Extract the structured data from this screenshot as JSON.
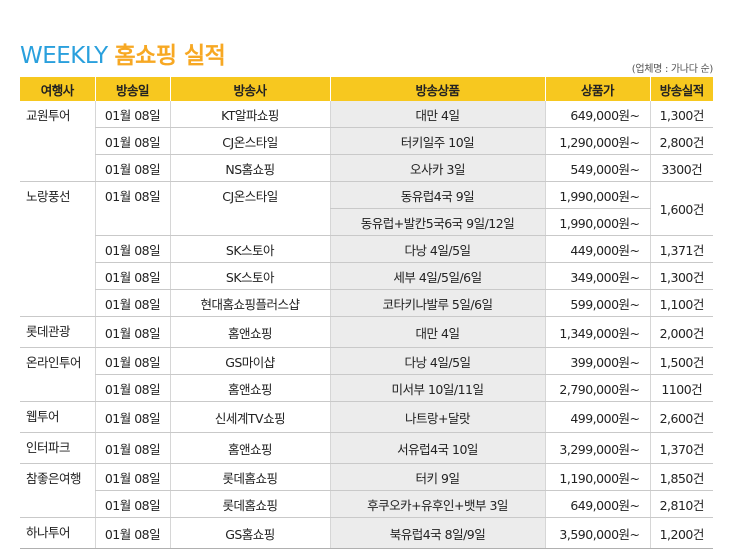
{
  "title": {
    "en": "WEEKLY ",
    "ko": "홈쇼핑 실적"
  },
  "note": "(업체명 : 가나다 순)",
  "headers": {
    "agency": "여행사",
    "date": "방송일",
    "channel": "방송사",
    "product": "방송상품",
    "price": "상품가",
    "sales": "방송실적"
  },
  "rows": [
    {
      "agency": "교원투어",
      "date": "01월 08일",
      "channel": "KT알파쇼핑",
      "product": "대만 4일",
      "price": "649,000원~",
      "sales": "1,300건"
    },
    {
      "agency": "",
      "date": "01월 08일",
      "channel": "CJ온스타일",
      "product": "터키일주 10일",
      "price": "1,290,000원~",
      "sales": "2,800건"
    },
    {
      "agency": "",
      "date": "01월 08일",
      "channel": "NS홈쇼핑",
      "product": "오사카 3일",
      "price": "549,000원~",
      "sales": "3300건"
    },
    {
      "agency": "노랑풍선",
      "date": "01월 08일",
      "channel": "CJ온스타일",
      "product": "동유럽4국 9일",
      "price": "1,990,000원~",
      "sales": "1,600건"
    },
    {
      "agency": "",
      "date": "",
      "channel": "",
      "product": "동유럽+발칸5국6국 9일/12일",
      "price": "1,990,000원~",
      "sales": ""
    },
    {
      "agency": "",
      "date": "01월 08일",
      "channel": "SK스토아",
      "product": "다낭 4일/5일",
      "price": "449,000원~",
      "sales": "1,371건"
    },
    {
      "agency": "",
      "date": "01월 08일",
      "channel": "SK스토아",
      "product": "세부 4일/5일/6일",
      "price": "349,000원~",
      "sales": "1,300건"
    },
    {
      "agency": "",
      "date": "01월 08일",
      "channel": "현대홈쇼핑플러스샵",
      "product": "코타키나발루 5일/6일",
      "price": "599,000원~",
      "sales": "1,100건"
    },
    {
      "agency": "롯데관광",
      "date": "01월 08일",
      "channel": "홈앤쇼핑",
      "product": "대만 4일",
      "price": "1,349,000원~",
      "sales": "2,000건"
    },
    {
      "agency": "온라인투어",
      "date": "01월 08일",
      "channel": "GS마이샵",
      "product": "다낭 4일/5일",
      "price": "399,000원~",
      "sales": "1,500건"
    },
    {
      "agency": "",
      "date": "01월 08일",
      "channel": "홈앤쇼핑",
      "product": "미서부 10일/11일",
      "price": "2,790,000원~",
      "sales": "1100건"
    },
    {
      "agency": "웹투어",
      "date": "01월 08일",
      "channel": "신세계TV쇼핑",
      "product": "나트랑+달랏",
      "price": "499,000원~",
      "sales": "2,600건"
    },
    {
      "agency": "인터파크",
      "date": "01월 08일",
      "channel": "홈앤쇼핑",
      "product": "서유럽4국 10일",
      "price": "3,299,000원~",
      "sales": "1,370건"
    },
    {
      "agency": "참좋은여행",
      "date": "01월 08일",
      "channel": "롯데홈쇼핑",
      "product": "터키 9일",
      "price": "1,190,000원~",
      "sales": "1,850건"
    },
    {
      "agency": "",
      "date": "01월 08일",
      "channel": "롯데홈쇼핑",
      "product": "후쿠오카+유후인+뱃부 3일",
      "price": "649,000원~",
      "sales": "2,810건"
    },
    {
      "agency": "하나투어",
      "date": "01월 08일",
      "channel": "GS홈쇼핑",
      "product": "북유럽4국 8일/9일",
      "price": "3,590,000원~",
      "sales": "1,200건"
    }
  ]
}
